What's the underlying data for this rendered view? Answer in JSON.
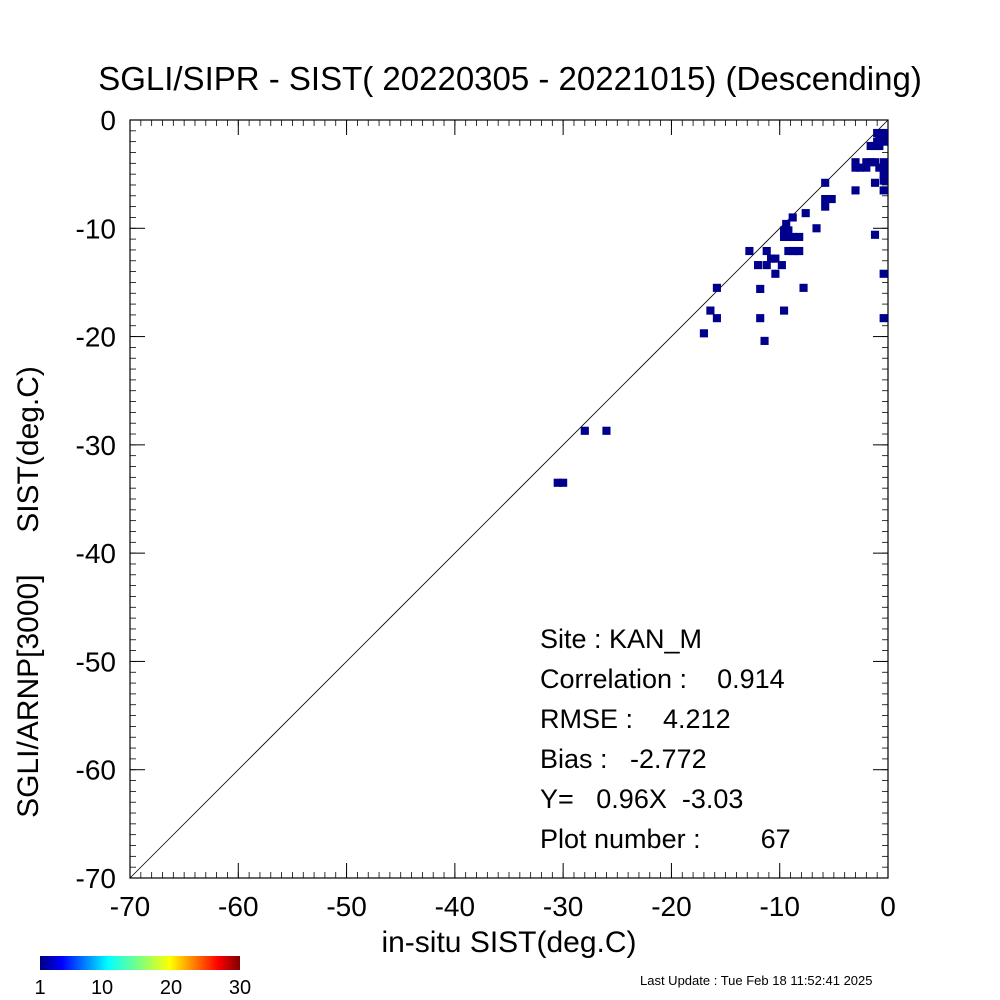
{
  "chart_data": {
    "type": "heatmap",
    "title": "SGLI/SIPR - SIST( 20220305 - 20221015) (Descending)",
    "xlabel": "in-situ SIST(deg.C)",
    "ylabel": "SGLI/ARNP[3000]     SIST(deg.C)",
    "xlim": [
      -70,
      0
    ],
    "ylim": [
      -70,
      0
    ],
    "x_ticks": [
      -70,
      -60,
      -50,
      -40,
      -30,
      -20,
      -10,
      0
    ],
    "y_ticks": [
      0,
      -10,
      -20,
      -30,
      -40,
      -50,
      -60,
      -70
    ],
    "x_tick_labels": [
      "-70",
      "-60",
      "-50",
      "-40",
      "-30",
      "-20",
      "-10",
      "0"
    ],
    "y_tick_labels": [
      "0",
      "-10",
      "-20",
      "-30",
      "-40",
      "-50",
      "-60",
      "-70"
    ],
    "reference_line": "y = x",
    "bin_size": 0.75,
    "cell_color": "#00008c",
    "points": [
      [
        -30.5,
        -33.5
      ],
      [
        -30.0,
        -33.5
      ],
      [
        -28.0,
        -28.7
      ],
      [
        -26.0,
        -28.7
      ],
      [
        -17.0,
        -19.7
      ],
      [
        -16.4,
        -17.6
      ],
      [
        -15.8,
        -18.3
      ],
      [
        -15.8,
        -15.5
      ],
      [
        -12.8,
        -12.1
      ],
      [
        -12.0,
        -13.4
      ],
      [
        -11.8,
        -15.6
      ],
      [
        -11.8,
        -18.3
      ],
      [
        -11.4,
        -20.4
      ],
      [
        -11.2,
        -12.1
      ],
      [
        -11.2,
        -13.4
      ],
      [
        -10.8,
        -12.8
      ],
      [
        -10.4,
        -14.2
      ],
      [
        -10.4,
        -12.8
      ],
      [
        -9.8,
        -13.4
      ],
      [
        -9.6,
        -10.2
      ],
      [
        -9.6,
        -10.8
      ],
      [
        -9.6,
        -17.6
      ],
      [
        -9.4,
        -9.6
      ],
      [
        -9.2,
        -10.2
      ],
      [
        -9.2,
        -10.8
      ],
      [
        -9.2,
        -12.1
      ],
      [
        -8.8,
        -9.0
      ],
      [
        -8.8,
        -10.8
      ],
      [
        -8.8,
        -12.1
      ],
      [
        -8.2,
        -12.1
      ],
      [
        -8.2,
        -10.8
      ],
      [
        -7.8,
        -15.5
      ],
      [
        -7.6,
        -8.6
      ],
      [
        -6.6,
        -10.0
      ],
      [
        -5.8,
        -5.8
      ],
      [
        -5.8,
        -7.3
      ],
      [
        -5.8,
        -8.0
      ],
      [
        -5.2,
        -7.3
      ],
      [
        -3.0,
        -6.5
      ],
      [
        -3.0,
        -4.4
      ],
      [
        -3.0,
        -3.9
      ],
      [
        -2.6,
        -4.4
      ],
      [
        -2.0,
        -3.9
      ],
      [
        -2.0,
        -4.4
      ],
      [
        -1.6,
        -3.9
      ],
      [
        -1.6,
        -2.4
      ],
      [
        -1.2,
        -2.4
      ],
      [
        -1.2,
        -3.9
      ],
      [
        -1.2,
        -5.8
      ],
      [
        -1.2,
        -10.6
      ],
      [
        -1.0,
        -1.2
      ],
      [
        -0.8,
        -1.6
      ],
      [
        -0.8,
        -2.0
      ],
      [
        -0.8,
        -2.4
      ],
      [
        -0.8,
        -4.4
      ],
      [
        -0.4,
        -1.2
      ],
      [
        -0.4,
        -1.6
      ],
      [
        -0.4,
        -2.0
      ],
      [
        -0.4,
        -3.9
      ],
      [
        -0.4,
        -4.4
      ],
      [
        -0.4,
        -5.0
      ],
      [
        -0.4,
        -6.5
      ],
      [
        -0.4,
        -14.2
      ],
      [
        -0.4,
        -18.3
      ],
      [
        -1.0,
        -2.0
      ],
      [
        -0.4,
        -5.6
      ],
      [
        -8.4,
        -12.1
      ]
    ]
  },
  "stats": {
    "site": "Site : KAN_M",
    "correlation": "Correlation :    0.914",
    "rmse": "RMSE :    4.212",
    "bias": "Bias :   -2.772",
    "regression": "Y=   0.96X  -3.03",
    "plot_number": "Plot number :        67"
  },
  "colorbar": {
    "labels": [
      "1",
      "10",
      "20",
      "30"
    ],
    "values": [
      1,
      10,
      20,
      30
    ],
    "range": [
      1,
      30
    ],
    "colormap": "jet"
  },
  "footer": "Last Update : Tue Feb 18 11:52:41 2025"
}
